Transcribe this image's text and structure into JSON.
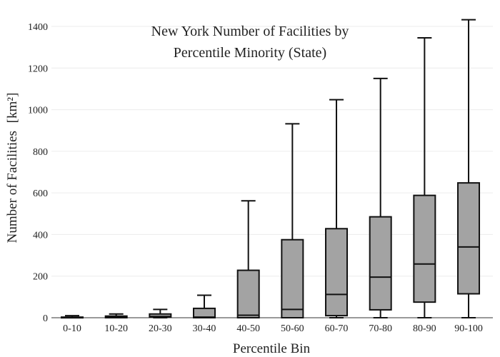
{
  "chart_data": {
    "type": "box",
    "title_lines": [
      "New York Number of Facilities by",
      "Percentile Minority (State)"
    ],
    "xlabel": "Percentile Bin",
    "ylabel": "Number of Facilities",
    "ylabel_unit": "[km²]",
    "ylim": [
      0,
      1450
    ],
    "yticks": [
      0,
      200,
      400,
      600,
      800,
      1000,
      1200,
      1400
    ],
    "grid": true,
    "categories": [
      "0-10",
      "10-20",
      "20-30",
      "30-40",
      "40-50",
      "50-60",
      "60-70",
      "70-80",
      "80-90",
      "90-100"
    ],
    "boxes": [
      {
        "min": 0,
        "q1": 0,
        "median": 0,
        "q3": 3,
        "max": 10
      },
      {
        "min": 0,
        "q1": 0,
        "median": 3,
        "q3": 8,
        "max": 18
      },
      {
        "min": 0,
        "q1": 3,
        "median": 6,
        "q3": 18,
        "max": 40
      },
      {
        "min": 0,
        "q1": 0,
        "median": 3,
        "q3": 45,
        "max": 108
      },
      {
        "min": 0,
        "q1": 0,
        "median": 12,
        "q3": 228,
        "max": 562
      },
      {
        "min": 0,
        "q1": 0,
        "median": 40,
        "q3": 375,
        "max": 932
      },
      {
        "min": 0,
        "q1": 10,
        "median": 112,
        "q3": 428,
        "max": 1048
      },
      {
        "min": 0,
        "q1": 38,
        "median": 195,
        "q3": 485,
        "max": 1150
      },
      {
        "min": 0,
        "q1": 75,
        "median": 258,
        "q3": 588,
        "max": 1345
      },
      {
        "min": 0,
        "q1": 115,
        "median": 340,
        "q3": 648,
        "max": 1432
      }
    ]
  }
}
